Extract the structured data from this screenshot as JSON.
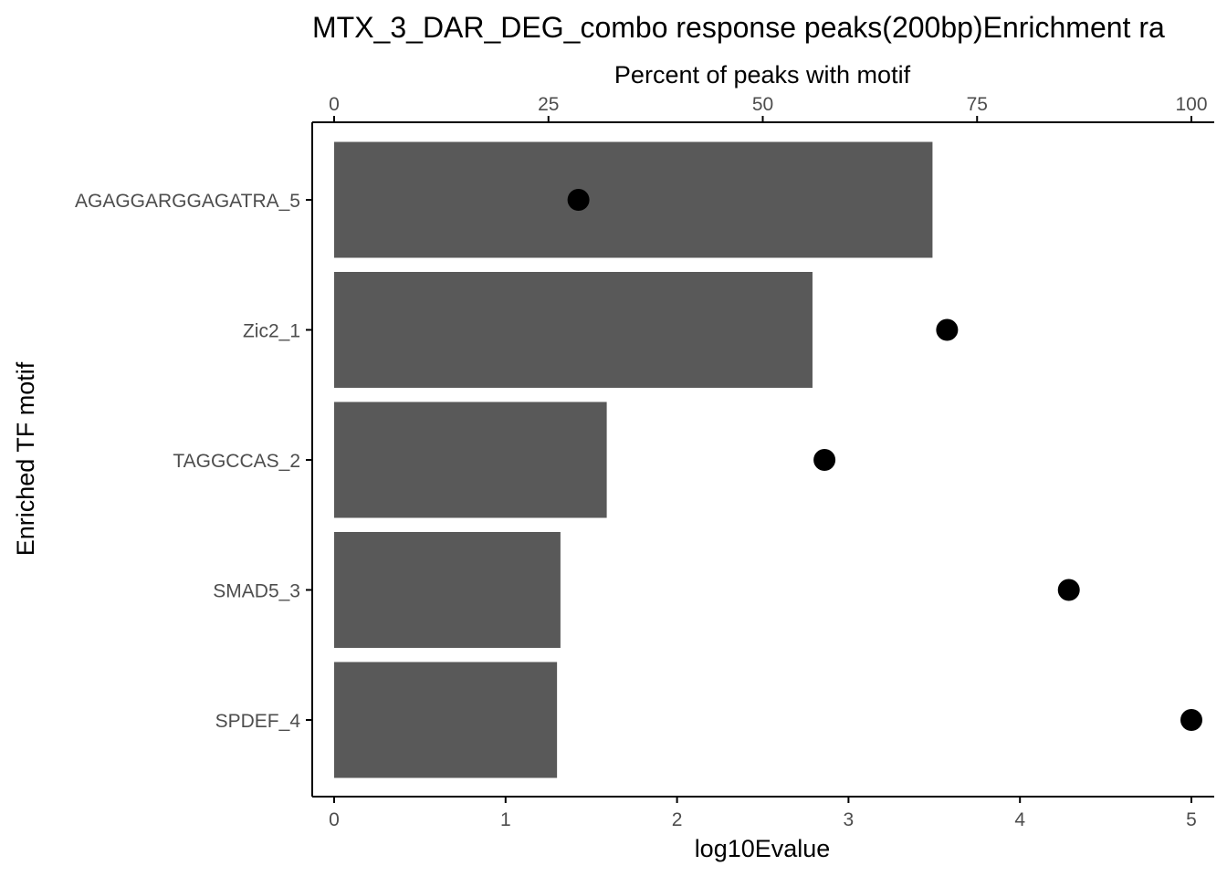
{
  "chart_data": {
    "type": "bar",
    "title": "MTX_3_DAR_DEG_combo response peaks(200bp)Enrichment ra",
    "ylabel": "Enriched TF motif",
    "categories": [
      "AGAGGARGGAGATRA_5",
      "Zic2_1",
      "TAGGCCAS_2",
      "SMAD5_3",
      "SPDEF_4"
    ],
    "bottom_axis": {
      "label": "log10Evalue",
      "range": [
        0,
        5
      ],
      "ticks": [
        "0",
        "1",
        "2",
        "3",
        "4",
        "5"
      ]
    },
    "top_axis": {
      "label": "Percent of peaks with motif",
      "range": [
        0,
        100
      ],
      "ticks": [
        "0",
        "25",
        "50",
        "75",
        "100"
      ]
    },
    "series": [
      {
        "type": "bar",
        "axis": "bottom",
        "values": [
          3.49,
          2.79,
          1.59,
          1.32,
          1.3
        ]
      },
      {
        "type": "point",
        "axis": "top",
        "values": [
          28.5,
          71.5,
          57.2,
          85.7,
          100
        ]
      }
    ],
    "colors": {
      "bar": "#595959",
      "point": "#000000",
      "axis": "#000000"
    },
    "grid": false,
    "legend": "none"
  }
}
